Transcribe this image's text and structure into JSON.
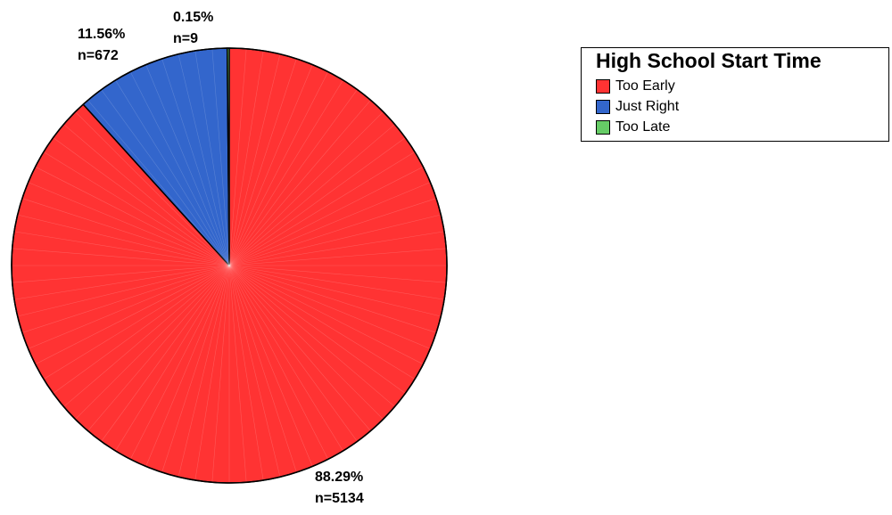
{
  "chart_data": {
    "type": "pie",
    "legend": {
      "title": "High School Start Time",
      "position": "top-right"
    },
    "slices": [
      {
        "label": "Too Early",
        "percent": 88.29,
        "percent_text": "88.29%",
        "n_text": "n=5134",
        "n": 5134,
        "color": "#ff3333"
      },
      {
        "label": "Just Right",
        "percent": 11.56,
        "percent_text": "11.56%",
        "n_text": "n=672",
        "n": 672,
        "color": "#3366cc"
      },
      {
        "label": "Too Late",
        "percent": 0.15,
        "percent_text": "0.15%",
        "n_text": "n=9",
        "n": 9,
        "color": "#66cc66"
      }
    ],
    "start_angle_deg": 0,
    "direction": "clockwise",
    "slice_edge_color": "#000000"
  }
}
